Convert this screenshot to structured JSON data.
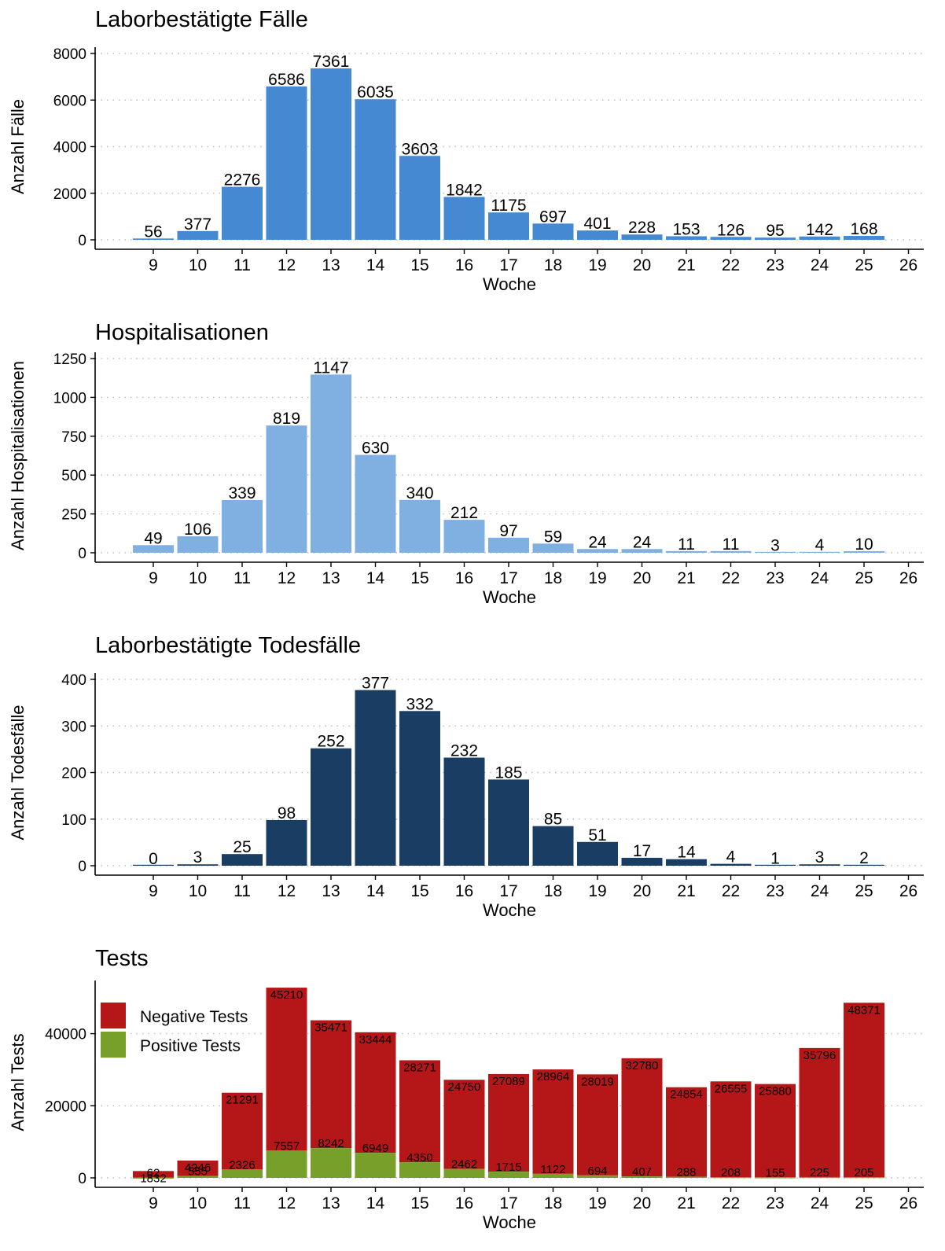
{
  "chart_data": [
    {
      "type": "bar",
      "title": "Laborbestätigte Fälle",
      "xlabel": "Woche",
      "ylabel": "Anzahl Fälle",
      "categories": [
        "9",
        "10",
        "11",
        "12",
        "13",
        "14",
        "15",
        "16",
        "17",
        "18",
        "19",
        "20",
        "21",
        "22",
        "23",
        "24",
        "25"
      ],
      "x_ticks": [
        "9",
        "10",
        "11",
        "12",
        "13",
        "14",
        "15",
        "16",
        "17",
        "18",
        "19",
        "20",
        "21",
        "22",
        "23",
        "24",
        "25",
        "26"
      ],
      "values": [
        56,
        377,
        2276,
        6586,
        7361,
        6035,
        3603,
        1842,
        1175,
        697,
        401,
        228,
        153,
        126,
        95,
        142,
        168
      ],
      "ylim": [
        0,
        8000
      ],
      "y_ticks": [
        0,
        2000,
        4000,
        6000,
        8000
      ],
      "color": "#4589D2",
      "grid": "horizontal dotted"
    },
    {
      "type": "bar",
      "title": "Hospitalisationen",
      "xlabel": "Woche",
      "ylabel": "Anzahl Hospitalisationen",
      "categories": [
        "9",
        "10",
        "11",
        "12",
        "13",
        "14",
        "15",
        "16",
        "17",
        "18",
        "19",
        "20",
        "21",
        "22",
        "23",
        "24",
        "25"
      ],
      "x_ticks": [
        "9",
        "10",
        "11",
        "12",
        "13",
        "14",
        "15",
        "16",
        "17",
        "18",
        "19",
        "20",
        "21",
        "22",
        "23",
        "24",
        "25",
        "26"
      ],
      "values": [
        49,
        106,
        339,
        819,
        1147,
        630,
        340,
        212,
        97,
        59,
        24,
        24,
        11,
        11,
        3,
        4,
        10
      ],
      "ylim": [
        0,
        1250
      ],
      "y_ticks": [
        0,
        250,
        500,
        750,
        1000,
        1250
      ],
      "color": "#80B0E2",
      "grid": "horizontal dotted"
    },
    {
      "type": "bar",
      "title": "Laborbestätigte Todesfälle",
      "xlabel": "Woche",
      "ylabel": "Anzahl Todesfälle",
      "categories": [
        "9",
        "10",
        "11",
        "12",
        "13",
        "14",
        "15",
        "16",
        "17",
        "18",
        "19",
        "20",
        "21",
        "22",
        "23",
        "24",
        "25"
      ],
      "x_ticks": [
        "9",
        "10",
        "11",
        "12",
        "13",
        "14",
        "15",
        "16",
        "17",
        "18",
        "19",
        "20",
        "21",
        "22",
        "23",
        "24",
        "25",
        "26"
      ],
      "values": [
        0,
        3,
        25,
        98,
        252,
        377,
        332,
        232,
        185,
        85,
        51,
        17,
        14,
        4,
        1,
        3,
        2
      ],
      "ylim": [
        0,
        400
      ],
      "y_ticks": [
        0,
        100,
        200,
        300,
        400
      ],
      "color": "#1A3D63",
      "grid": "horizontal dotted"
    },
    {
      "type": "bar",
      "stacked": true,
      "title": "Tests",
      "xlabel": "Woche",
      "ylabel": "Anzahl Tests",
      "categories": [
        "9",
        "10",
        "11",
        "12",
        "13",
        "14",
        "15",
        "16",
        "17",
        "18",
        "19",
        "20",
        "21",
        "22",
        "23",
        "24",
        "25"
      ],
      "x_ticks": [
        "9",
        "10",
        "11",
        "12",
        "13",
        "14",
        "15",
        "16",
        "17",
        "18",
        "19",
        "20",
        "21",
        "22",
        "23",
        "24",
        "25",
        "26"
      ],
      "series": [
        {
          "name": "Positive Tests",
          "color": "#76A02A",
          "values": [
            62,
            555,
            2326,
            7557,
            8242,
            6949,
            4350,
            2462,
            1715,
            1122,
            694,
            407,
            288,
            208,
            155,
            225,
            205
          ]
        },
        {
          "name": "Negative Tests",
          "color": "#B51718",
          "values": [
            1832,
            4246,
            21291,
            45210,
            35471,
            33444,
            28271,
            24750,
            27089,
            28964,
            28019,
            32780,
            24854,
            26555,
            25880,
            35796,
            48371
          ]
        }
      ],
      "legend": {
        "placement": "top-left",
        "order": [
          "Negative Tests",
          "Positive Tests"
        ]
      },
      "ylim": [
        0,
        53000
      ],
      "y_ticks": [
        0,
        20000,
        40000
      ],
      "grid": "horizontal dotted"
    }
  ]
}
